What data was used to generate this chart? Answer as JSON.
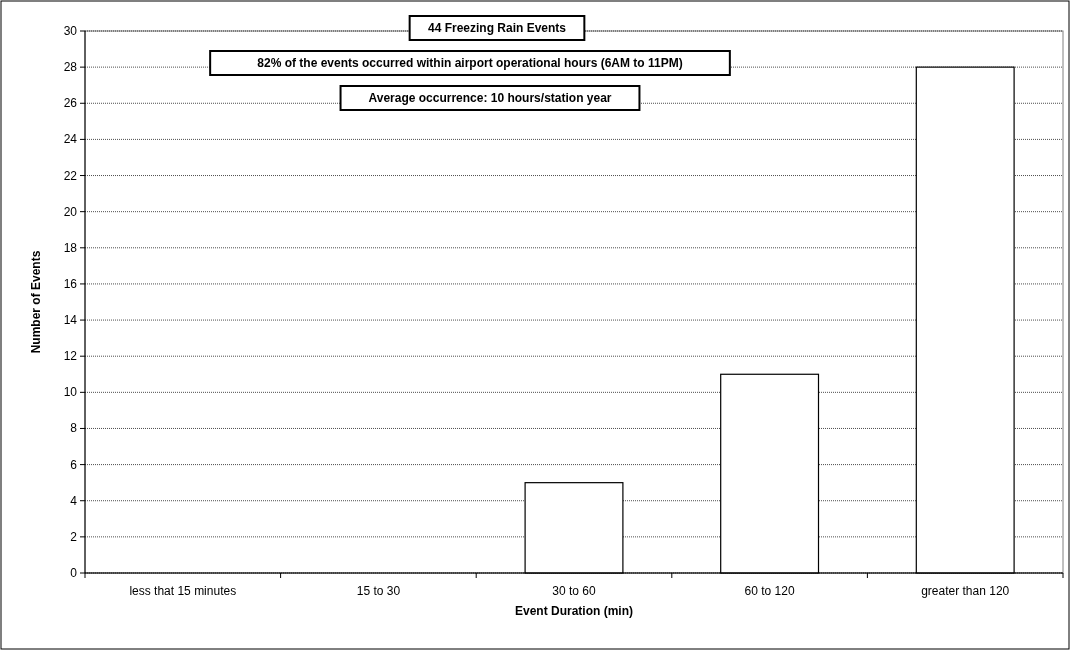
{
  "chart_data": {
    "type": "bar",
    "xlabel": "Event Duration (min)",
    "ylabel": "Number of Events",
    "categories": [
      "less that 15 minutes",
      "15 to 30",
      "30 to 60",
      "60 to 120",
      "greater than 120"
    ],
    "values": [
      0,
      0,
      5,
      11,
      28
    ],
    "color": "#ffffff",
    "ylim": [
      0,
      30
    ],
    "yticks": [
      0,
      2,
      4,
      6,
      8,
      10,
      12,
      14,
      16,
      18,
      20,
      22,
      24,
      26,
      28,
      30
    ],
    "grid": "y",
    "annotations": [
      "44 Freezing Rain Events",
      "82% of the events occurred within airport operational hours (6AM to 11PM)",
      "Average occurrence: 10 hours/station year"
    ]
  }
}
